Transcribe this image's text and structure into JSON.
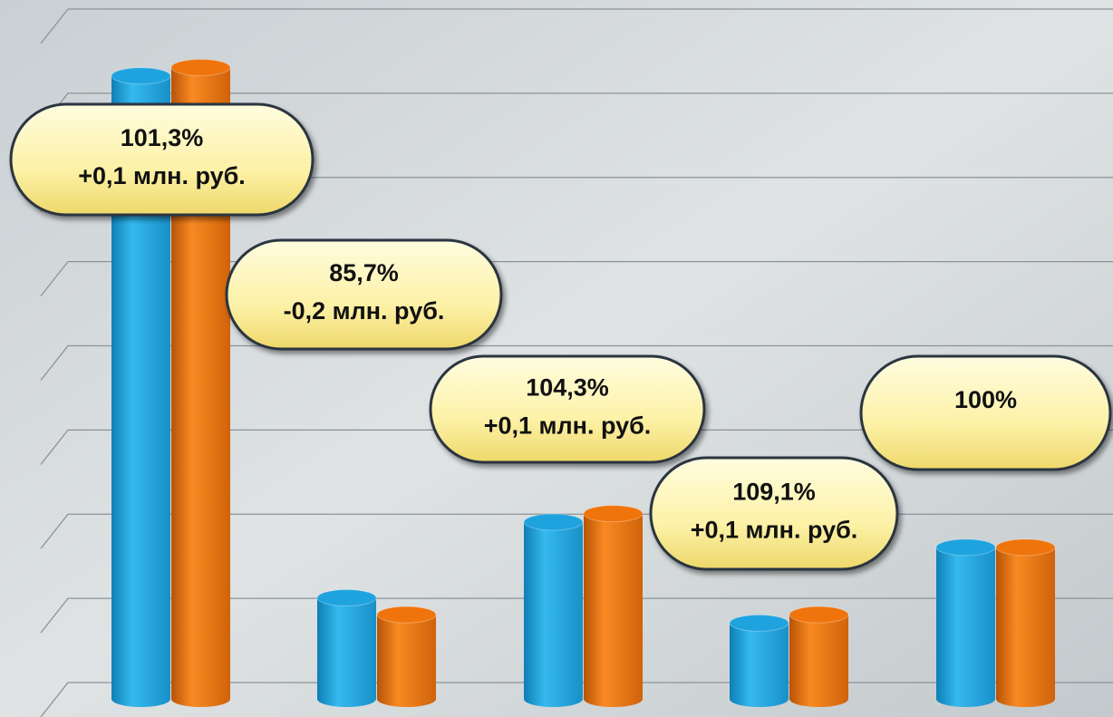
{
  "chart_data": {
    "type": "bar3d",
    "categories": [
      null,
      null,
      null,
      null,
      null
    ],
    "series": [
      {
        "color": "#1ea3df",
        "values": [
          7.4,
          1.2,
          2.1,
          0.9,
          1.8
        ]
      },
      {
        "color": "#ef740c",
        "values": [
          7.5,
          1.0,
          2.2,
          1.0,
          1.8
        ]
      }
    ],
    "ylim": [
      0,
      8
    ],
    "yticks": [
      0,
      1,
      2,
      3,
      4,
      5,
      6,
      7,
      8
    ],
    "grid": true,
    "annotations": [
      {
        "lines": [
          "101,3%",
          "+0,1 млн. руб."
        ]
      },
      {
        "lines": [
          "85,7%",
          "-0,2 млн. руб."
        ]
      },
      {
        "lines": [
          "104,3%",
          "+0,1 млн. руб."
        ]
      },
      {
        "lines": [
          "109,1%",
          "+0,1 млн. руб."
        ]
      },
      {
        "lines": [
          "100%"
        ]
      }
    ]
  }
}
